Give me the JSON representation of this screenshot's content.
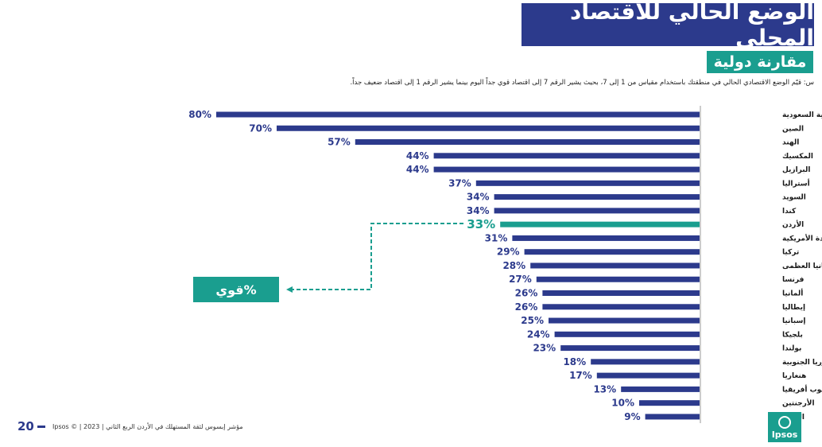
{
  "header": {
    "title": "الوضع الحالي للاقتصاد المحلي",
    "subtitle": "مقارنة دولية",
    "question": "س: قيّم الوضع الاقتصادي الحالي في منطقتك باستخدام مقياس من 1 إلى 7، بحيث يشير الرقم 7 إلى اقتصاد قوي جداً اليوم بينما يشير الرقم 1 إلى اقتصاد ضعيف جداً."
  },
  "chart_data": {
    "type": "bar",
    "orientation": "horizontal",
    "categories": [
      "المملكة العربية السعودية",
      "الصين",
      "الهند",
      "المكسيك",
      "البرازيل",
      "أستراليا",
      "السويد",
      "كندا",
      "الأردن",
      "الولايات المتحدة الأمريكية",
      "تركيا",
      "بريطانيا العظمى",
      "فرنسا",
      "ألمانيا",
      "إيطاليا",
      "إسبانيا",
      "بلجيكا",
      "بولندا",
      "كوريا الجنوبية",
      "هنغاريا",
      "جنوب أفريقيا",
      "الأرجنتين",
      "اليابان"
    ],
    "values": [
      80,
      70,
      57,
      44,
      44,
      37,
      34,
      34,
      33,
      31,
      29,
      28,
      27,
      26,
      26,
      25,
      24,
      23,
      18,
      17,
      13,
      10,
      9
    ],
    "value_labels": [
      "80%",
      "70%",
      "57%",
      "44%",
      "44%",
      "37%",
      "34%",
      "34%",
      "33%",
      "31%",
      "29%",
      "28%",
      "27%",
      "26%",
      "26%",
      "25%",
      "24%",
      "23%",
      "18%",
      "17%",
      "13%",
      "10%",
      "9%"
    ],
    "highlight": "الأردن",
    "xlim": [
      0,
      100
    ],
    "title": "",
    "xlabel": "",
    "ylabel": ""
  },
  "legend": {
    "strong_label": "%قوي"
  },
  "colors": {
    "bar": "#2c3a8c",
    "highlight": "#1a9e8f",
    "title_bg": "#2c3a8c",
    "subtitle_bg": "#1a9e8f"
  },
  "footer": {
    "text": "مؤشر إبسوس لثقة المستهلك في الأردن الربع الثاني | 2023 | © Ipsos",
    "page_number": "20",
    "logo_text": "Ipsos"
  }
}
